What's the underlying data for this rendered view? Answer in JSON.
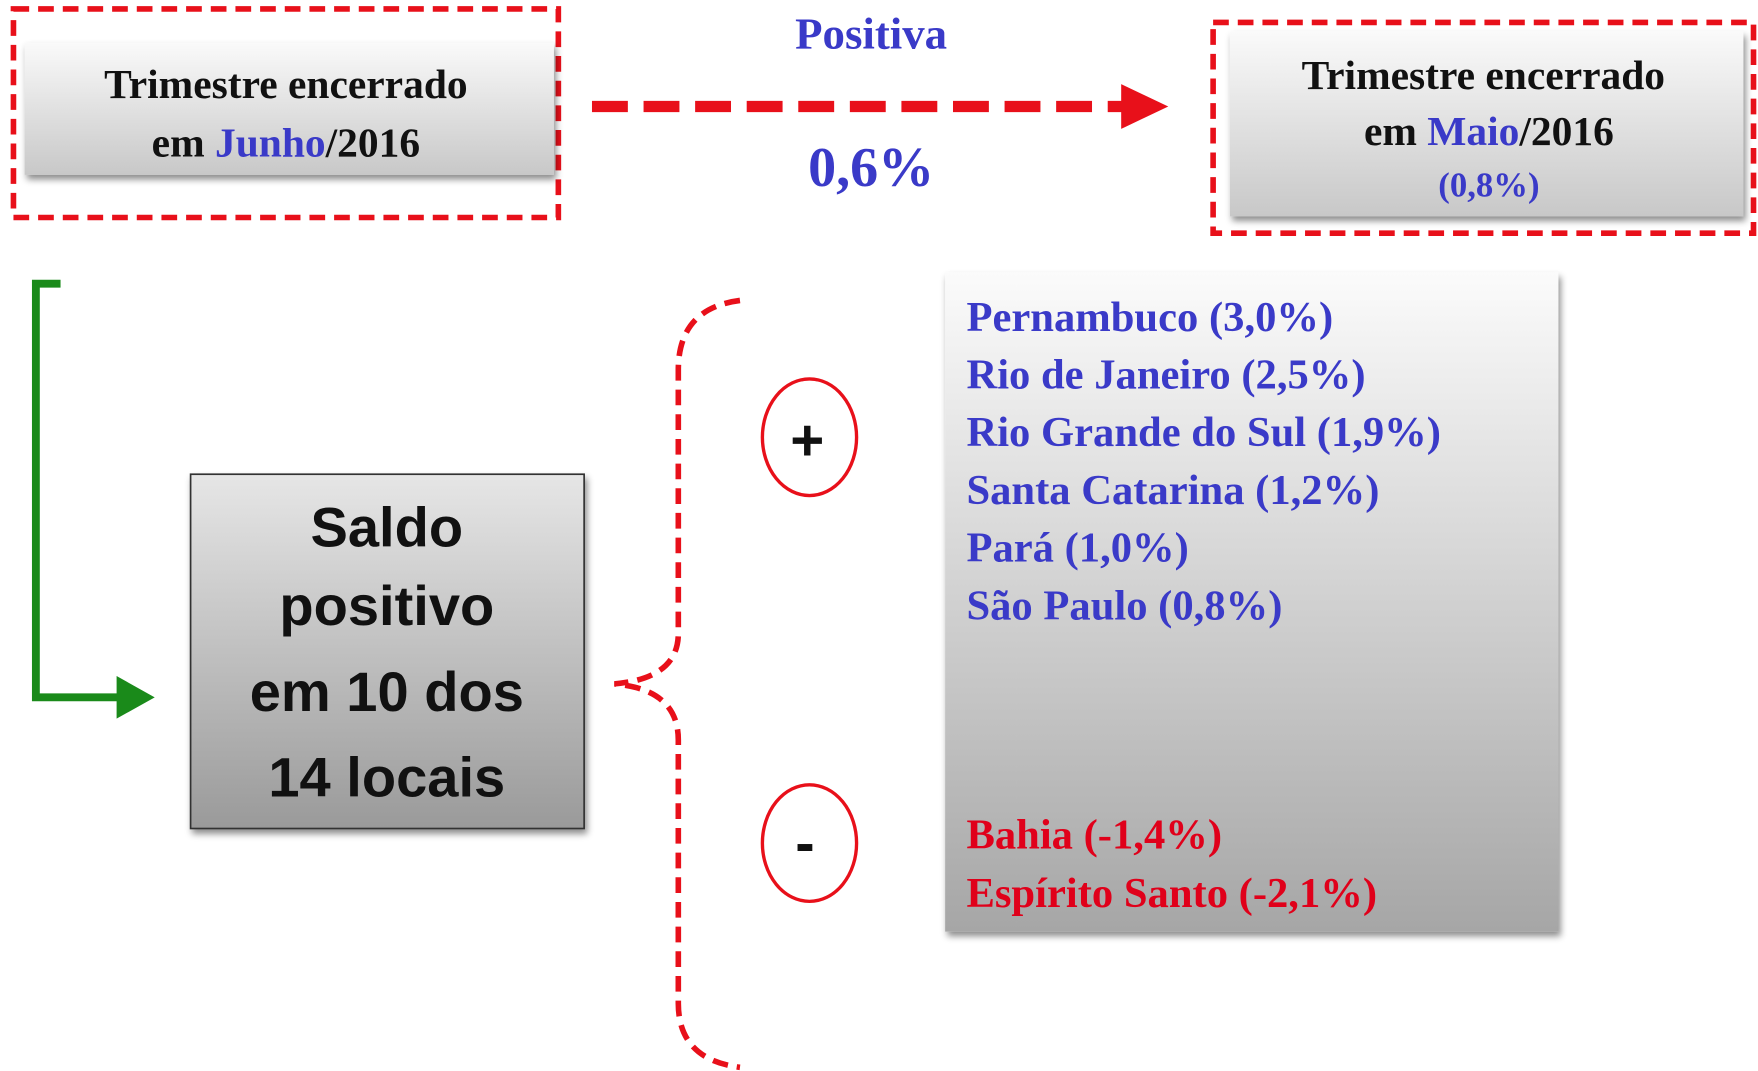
{
  "left_box": {
    "line1": "Trimestre encerrado",
    "prefix": "em ",
    "month": "Junho",
    "suffix": "/2016"
  },
  "arrow": {
    "label": "Positiva",
    "value": "0,6%"
  },
  "right_box": {
    "line1": "Trimestre encerrado",
    "prefix": "em ",
    "month": "Maio",
    "suffix": "/2016",
    "value": "(0,8%)"
  },
  "summary": {
    "lines": [
      "Saldo",
      "positivo",
      "em 10 dos",
      "14 locais"
    ]
  },
  "signs": {
    "positive": "+",
    "negative": "-"
  },
  "positive_list": [
    "Pernambuco (3,0%)",
    "Rio de Janeiro (2,5%)",
    "Rio Grande do Sul (1,9%)",
    "Santa Catarina (1,2%)",
    "Pará (1,0%)",
    "São Paulo (0,8%)"
  ],
  "negative_list": [
    "Bahia (-1,4%)",
    "Espírito Santo (-2,1%)"
  ]
}
